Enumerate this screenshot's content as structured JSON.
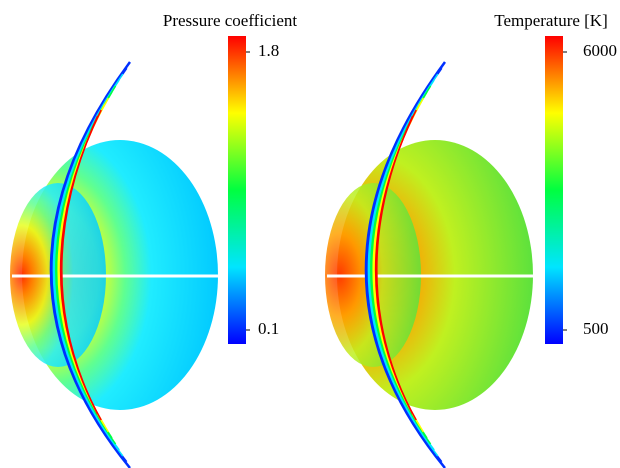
{
  "chart_data": [
    {
      "type": "contour",
      "colorbar_title": "Pressure coefficient",
      "clim": [
        0.1,
        1.8
      ],
      "cticks": [
        0.1,
        1.8
      ],
      "colormap": [
        "#0000ff",
        "#00e5ff",
        "#00ff40",
        "#ffff00",
        "#ff0000"
      ]
    },
    {
      "type": "contour",
      "colorbar_title": "Temperature [K]",
      "clim": [
        500,
        6000
      ],
      "cticks": [
        500,
        6000
      ],
      "colormap": [
        "#0000ff",
        "#00e5ff",
        "#00ff40",
        "#ffff00",
        "#ff0000"
      ]
    }
  ]
}
